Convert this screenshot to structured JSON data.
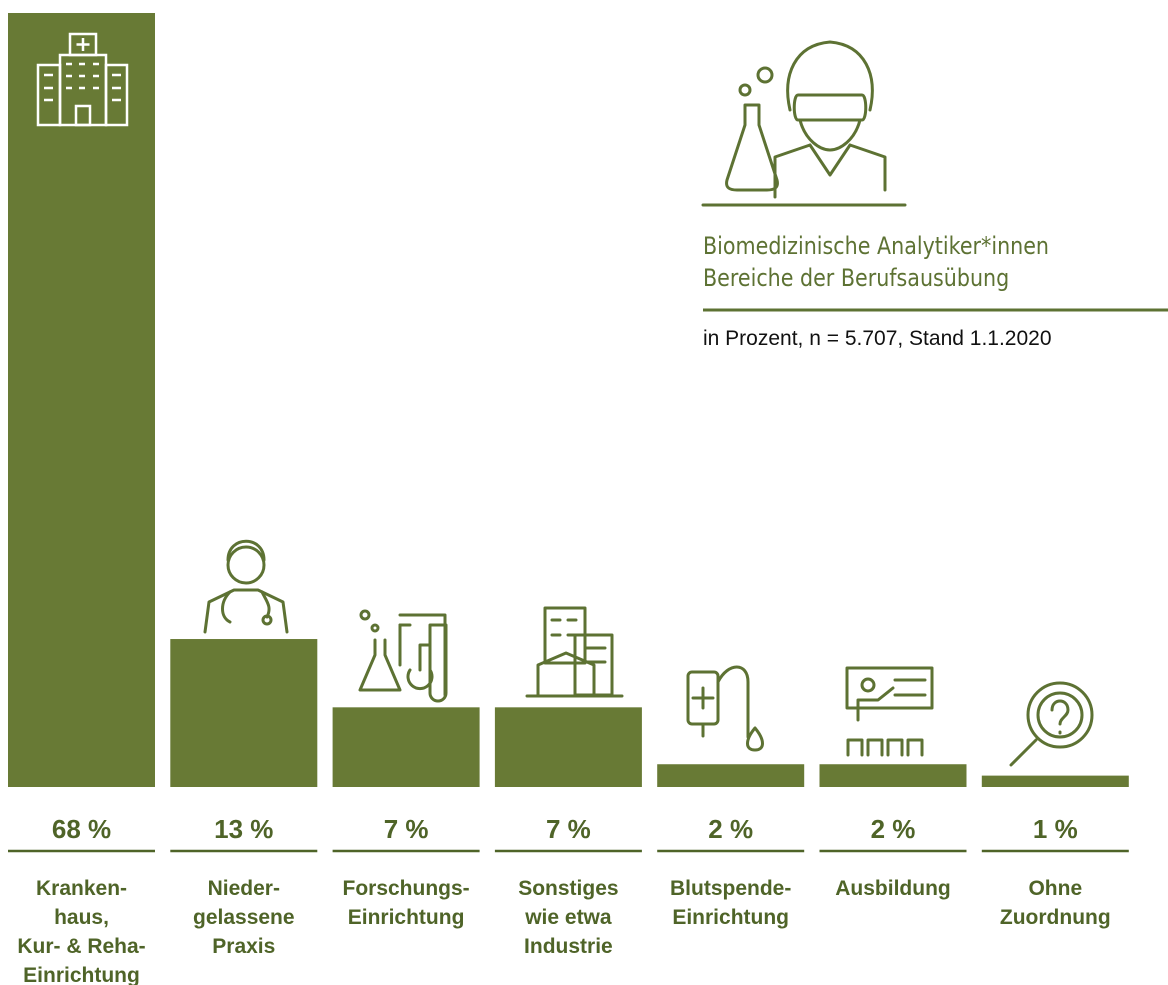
{
  "chart_data": {
    "type": "bar",
    "title": "Biomedizinische Analytiker*innen\nBereiche der Berufsausübung",
    "note": "in Prozent, n = 5.707, Stand 1.1.2020",
    "categories": [
      "Kranken-\nhaus,\nKur- & Reha-\nEinrichtung",
      "Nieder-\ngelassene\nPraxis",
      "Forschungs-\nEinrichtung",
      "Sonstiges\nwie etwa\nIndustrie",
      "Blutspende-\nEinrichtung",
      "Ausbildung",
      "Ohne\nZuordnung"
    ],
    "values": [
      68,
      13,
      7,
      7,
      2,
      2,
      1
    ],
    "value_labels": [
      "68 %",
      "13 %",
      "7 %",
      "7 %",
      "2 %",
      "2 %",
      "1 %"
    ],
    "color": "#687a35"
  }
}
